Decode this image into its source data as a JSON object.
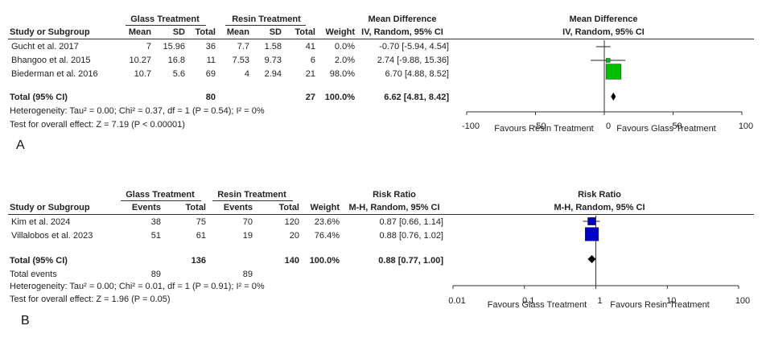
{
  "chart_data": [
    {
      "type": "forest",
      "panel_label": "A",
      "group_headers": [
        "Glass Treatment",
        "Resin Treatment"
      ],
      "columns": [
        "Study or Subgroup",
        "Mean",
        "SD",
        "Total",
        "Mean",
        "SD",
        "Total",
        "Weight"
      ],
      "effect_header": [
        "Mean Difference",
        "IV, Random, 95% CI"
      ],
      "plot_header": [
        "Mean Difference",
        "IV, Random, 95% CI"
      ],
      "studies": [
        {
          "name": "Gucht et al. 2017",
          "g_mean": "7",
          "g_sd": "15.96",
          "g_total": "36",
          "r_mean": "7.7",
          "r_sd": "1.58",
          "r_total": "41",
          "weight": "0.0%",
          "ci_text": "-0.70 [-5.94, 4.54]",
          "est": -0.7,
          "lo": -5.94,
          "hi": 4.54,
          "w": 0.0
        },
        {
          "name": "Bhangoo et al. 2015",
          "g_mean": "10.27",
          "g_sd": "16.8",
          "g_total": "11",
          "r_mean": "7.53",
          "r_sd": "9.73",
          "r_total": "6",
          "weight": "2.0%",
          "ci_text": "2.74 [-9.88, 15.36]",
          "est": 2.74,
          "lo": -9.88,
          "hi": 15.36,
          "w": 2.0
        },
        {
          "name": "Biederman et al. 2016",
          "g_mean": "10.7",
          "g_sd": "5.6",
          "g_total": "69",
          "r_mean": "4",
          "r_sd": "2.94",
          "r_total": "21",
          "weight": "98.0%",
          "ci_text": "6.70 [4.88, 8.52]",
          "est": 6.7,
          "lo": 4.88,
          "hi": 8.52,
          "w": 98.0
        }
      ],
      "total": {
        "label": "Total (95% CI)",
        "g_total": "80",
        "r_total": "27",
        "weight": "100.0%",
        "ci_text": "6.62 [4.81, 8.42]",
        "est": 6.62,
        "lo": 4.81,
        "hi": 8.42
      },
      "heterogeneity": "Heterogeneity: Tau² = 0.00; Chi² = 0.37, df = 1 (P = 0.54); I² = 0%",
      "overall_effect": "Test for overall effect: Z = 7.19 (P < 0.00001)",
      "axis": {
        "scale": "linear",
        "min": -100,
        "max": 100,
        "ticks": [
          -100,
          -50,
          0,
          50,
          100
        ],
        "tick_labels": [
          "-100",
          "-50",
          "0",
          "50",
          "100"
        ]
      },
      "favours_left": "Favours Resin Treatment",
      "favours_right": "Favours Glass Treatment",
      "marker_color": "#00c000"
    },
    {
      "type": "forest",
      "panel_label": "B",
      "group_headers": [
        "Glass Treatment",
        "Resin Treatment"
      ],
      "columns": [
        "Study or Subgroup",
        "Events",
        "Total",
        "Events",
        "Total",
        "Weight"
      ],
      "effect_header": [
        "Risk Ratio",
        "M-H, Random, 95% CI"
      ],
      "plot_header": [
        "Risk Ratio",
        "M-H, Random, 95% CI"
      ],
      "studies": [
        {
          "name": "Kim et al. 2024",
          "g_events": "38",
          "g_total": "75",
          "r_events": "70",
          "r_total": "120",
          "weight": "23.6%",
          "ci_text": "0.87 [0.66, 1.14]",
          "est": 0.87,
          "lo": 0.66,
          "hi": 1.14,
          "w": 23.6
        },
        {
          "name": "Villalobos et al. 2023",
          "g_events": "51",
          "g_total": "61",
          "r_events": "19",
          "r_total": "20",
          "weight": "76.4%",
          "ci_text": "0.88 [0.76, 1.02]",
          "est": 0.88,
          "lo": 0.76,
          "hi": 1.02,
          "w": 76.4
        }
      ],
      "total": {
        "label": "Total (95% CI)",
        "g_total": "136",
        "r_total": "140",
        "weight": "100.0%",
        "ci_text": "0.88 [0.77, 1.00]",
        "est": 0.88,
        "lo": 0.77,
        "hi": 1.0
      },
      "total_events": {
        "label": "Total events",
        "g_events": "89",
        "r_events": "89"
      },
      "heterogeneity": "Heterogeneity: Tau² = 0.00; Chi² = 0.01, df = 1 (P = 0.91); I² = 0%",
      "overall_effect": "Test for overall effect: Z = 1.96 (P = 0.05)",
      "axis": {
        "scale": "log",
        "min": 0.01,
        "max": 100,
        "ticks": [
          0.01,
          0.1,
          1,
          10,
          100
        ],
        "tick_labels": [
          "0.01",
          "0.1",
          "1",
          "10",
          "100"
        ]
      },
      "favours_left": "Favours Glass Treatment",
      "favours_right": "Favours Resin Treatment",
      "marker_color": "#0000c8"
    }
  ]
}
